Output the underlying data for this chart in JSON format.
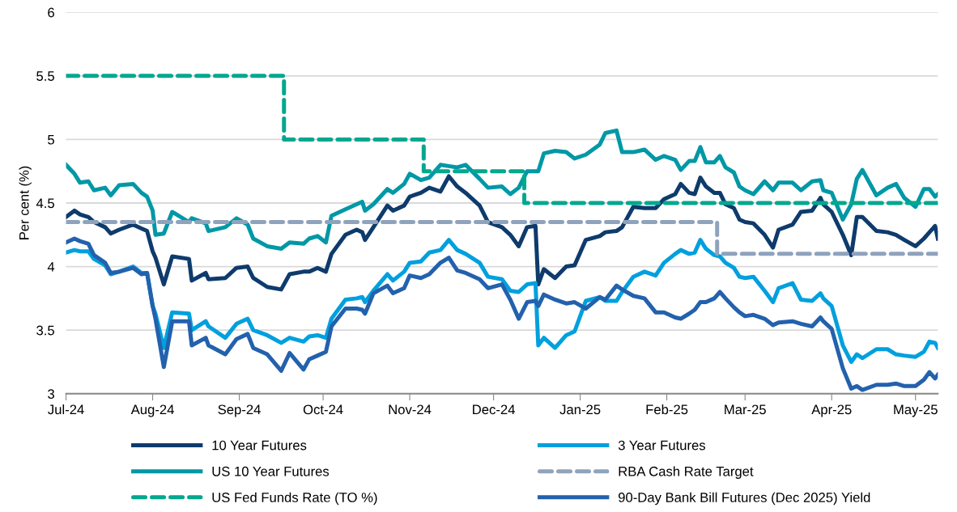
{
  "chart_data": {
    "type": "line",
    "ylabel": "Per cent (%)",
    "x": [
      "2024-07-01",
      "2024-07-04",
      "2024-07-06",
      "2024-07-09",
      "2024-07-11",
      "2024-07-15",
      "2024-07-17",
      "2024-07-20",
      "2024-07-25",
      "2024-07-28",
      "2024-07-30",
      "2024-08-01",
      "2024-08-02",
      "2024-08-05",
      "2024-08-08",
      "2024-08-14",
      "2024-08-15",
      "2024-08-20",
      "2024-08-21",
      "2024-08-27",
      "2024-08-31",
      "2024-09-04",
      "2024-09-06",
      "2024-09-11",
      "2024-09-16",
      "2024-09-19",
      "2024-09-24",
      "2024-09-26",
      "2024-09-29",
      "2024-10-02",
      "2024-10-04",
      "2024-10-09",
      "2024-10-13",
      "2024-10-15",
      "2024-10-16",
      "2024-10-19",
      "2024-10-24",
      "2024-10-26",
      "2024-10-30",
      "2024-11-01",
      "2024-11-05",
      "2024-11-08",
      "2024-11-12",
      "2024-11-15",
      "2024-11-18",
      "2024-11-21",
      "2024-11-26",
      "2024-11-29",
      "2024-12-04",
      "2024-12-07",
      "2024-12-10",
      "2024-12-13",
      "2024-12-16",
      "2024-12-17",
      "2024-12-19",
      "2024-12-23",
      "2024-12-27",
      "2024-12-30",
      "2025-01-03",
      "2025-01-08",
      "2025-01-10",
      "2025-01-14",
      "2025-01-16",
      "2025-01-20",
      "2025-01-24",
      "2025-01-28",
      "2025-01-31",
      "2025-02-04",
      "2025-02-06",
      "2025-02-09",
      "2025-02-11",
      "2025-02-13",
      "2025-02-15",
      "2025-02-18",
      "2025-02-20",
      "2025-02-22",
      "2025-02-25",
      "2025-02-27",
      "2025-03-01",
      "2025-03-04",
      "2025-03-08",
      "2025-03-11",
      "2025-03-13",
      "2025-03-18",
      "2025-03-21",
      "2025-03-25",
      "2025-03-28",
      "2025-03-29",
      "2025-04-01",
      "2025-04-05",
      "2025-04-08",
      "2025-04-10",
      "2025-04-12",
      "2025-04-17",
      "2025-04-21",
      "2025-04-24",
      "2025-04-27",
      "2025-05-01",
      "2025-05-04",
      "2025-05-06",
      "2025-05-08",
      "2025-05-09"
    ],
    "series": [
      {
        "name": "10 Year Futures",
        "color": "#0e3b6c",
        "values": [
          4.39,
          4.44,
          4.41,
          4.39,
          4.35,
          4.31,
          4.26,
          4.29,
          4.33,
          4.3,
          4.28,
          4.12,
          4.07,
          3.86,
          4.08,
          4.06,
          3.89,
          3.95,
          3.9,
          3.91,
          3.99,
          4.0,
          3.91,
          3.84,
          3.82,
          3.94,
          3.96,
          3.96,
          3.99,
          3.96,
          4.1,
          4.25,
          4.29,
          4.27,
          4.21,
          4.31,
          4.48,
          4.44,
          4.48,
          4.55,
          4.58,
          4.62,
          4.59,
          4.71,
          4.63,
          4.58,
          4.48,
          4.35,
          4.31,
          4.25,
          4.16,
          4.31,
          4.32,
          3.86,
          3.98,
          3.91,
          4.0,
          4.01,
          4.21,
          4.24,
          4.27,
          4.28,
          4.31,
          4.47,
          4.46,
          4.46,
          4.53,
          4.57,
          4.65,
          4.58,
          4.57,
          4.7,
          4.63,
          4.58,
          4.58,
          4.49,
          4.46,
          4.37,
          4.35,
          4.34,
          4.25,
          4.15,
          4.29,
          4.33,
          4.43,
          4.44,
          4.54,
          4.49,
          4.43,
          4.25,
          4.09,
          4.39,
          4.39,
          4.28,
          4.27,
          4.25,
          4.21,
          4.16,
          4.22,
          4.27,
          4.32,
          4.22
        ]
      },
      {
        "name": "US 10 Year Futures",
        "color": "#0098a6",
        "values": [
          4.8,
          4.73,
          4.66,
          4.67,
          4.6,
          4.62,
          4.56,
          4.64,
          4.65,
          4.58,
          4.55,
          4.44,
          4.25,
          4.26,
          4.43,
          4.35,
          4.38,
          4.34,
          4.28,
          4.31,
          4.38,
          4.33,
          4.22,
          4.16,
          4.14,
          4.19,
          4.18,
          4.22,
          4.24,
          4.19,
          4.4,
          4.45,
          4.49,
          4.51,
          4.44,
          4.49,
          4.61,
          4.58,
          4.65,
          4.73,
          4.68,
          4.7,
          4.8,
          4.79,
          4.78,
          4.8,
          4.69,
          4.62,
          4.63,
          4.57,
          4.62,
          4.75,
          4.75,
          4.75,
          4.89,
          4.91,
          4.9,
          4.85,
          4.88,
          4.96,
          5.05,
          5.07,
          4.9,
          4.9,
          4.92,
          4.84,
          4.87,
          4.84,
          4.76,
          4.83,
          4.83,
          4.94,
          4.82,
          4.82,
          4.87,
          4.78,
          4.74,
          4.63,
          4.6,
          4.57,
          4.67,
          4.6,
          4.66,
          4.66,
          4.6,
          4.67,
          4.68,
          4.6,
          4.58,
          4.37,
          4.49,
          4.69,
          4.76,
          4.56,
          4.62,
          4.65,
          4.54,
          4.47,
          4.61,
          4.61,
          4.55,
          4.57
        ]
      },
      {
        "name": "US Fed Funds Rate (TO %)",
        "type": "step",
        "line_style": "dashed",
        "color": "#00a88e",
        "x": [
          "2024-07-01",
          "2024-09-17",
          "2024-11-06",
          "2024-12-12",
          "2025-05-09"
        ],
        "values": [
          5.5,
          5.0,
          4.75,
          4.5,
          4.5
        ]
      },
      {
        "name": "3 Year Futures",
        "color": "#00a0de",
        "values": [
          4.11,
          4.13,
          4.12,
          4.12,
          4.06,
          4.01,
          3.94,
          3.96,
          4.0,
          3.95,
          3.95,
          3.69,
          3.63,
          3.36,
          3.64,
          3.63,
          3.5,
          3.57,
          3.53,
          3.44,
          3.55,
          3.59,
          3.5,
          3.46,
          3.4,
          3.44,
          3.41,
          3.45,
          3.46,
          3.44,
          3.59,
          3.74,
          3.75,
          3.76,
          3.72,
          3.81,
          3.94,
          3.89,
          3.96,
          4.03,
          4.04,
          4.11,
          4.13,
          4.21,
          4.13,
          4.1,
          4.03,
          3.92,
          3.9,
          3.81,
          3.8,
          3.86,
          3.87,
          3.38,
          3.44,
          3.36,
          3.46,
          3.49,
          3.73,
          3.76,
          3.73,
          3.73,
          3.8,
          3.92,
          3.96,
          3.93,
          4.03,
          4.1,
          4.13,
          4.1,
          4.11,
          4.21,
          4.14,
          4.09,
          4.08,
          4.03,
          3.99,
          3.92,
          3.91,
          3.92,
          3.81,
          3.72,
          3.83,
          3.87,
          3.74,
          3.73,
          3.79,
          3.75,
          3.69,
          3.38,
          3.25,
          3.31,
          3.28,
          3.35,
          3.35,
          3.31,
          3.3,
          3.29,
          3.33,
          3.41,
          3.4,
          3.36
        ]
      },
      {
        "name": "RBA Cash Rate Target",
        "type": "step",
        "line_style": "dashed",
        "color": "#8fa3bd",
        "x": [
          "2024-07-01",
          "2025-02-19",
          "2025-05-09"
        ],
        "values": [
          4.35,
          4.1,
          4.1
        ]
      },
      {
        "name": "90-Day Bank Bill Futures (Dec 2025) Yield",
        "color": "#2361ad",
        "values": [
          4.19,
          4.22,
          4.2,
          4.18,
          4.09,
          4.03,
          3.95,
          3.96,
          3.99,
          3.94,
          3.95,
          3.69,
          3.59,
          3.21,
          3.57,
          3.57,
          3.38,
          3.44,
          3.38,
          3.31,
          3.43,
          3.47,
          3.36,
          3.31,
          3.18,
          3.32,
          3.19,
          3.27,
          3.3,
          3.33,
          3.53,
          3.67,
          3.67,
          3.66,
          3.63,
          3.79,
          3.85,
          3.79,
          3.83,
          3.93,
          3.91,
          3.94,
          4.03,
          4.07,
          3.97,
          3.95,
          3.9,
          3.83,
          3.86,
          3.74,
          3.59,
          3.72,
          3.73,
          3.69,
          3.78,
          3.74,
          3.71,
          3.72,
          3.67,
          3.76,
          3.74,
          3.85,
          3.82,
          3.77,
          3.75,
          3.64,
          3.64,
          3.6,
          3.59,
          3.63,
          3.66,
          3.72,
          3.72,
          3.75,
          3.8,
          3.75,
          3.68,
          3.64,
          3.61,
          3.62,
          3.59,
          3.54,
          3.56,
          3.57,
          3.55,
          3.53,
          3.6,
          3.57,
          3.51,
          3.2,
          3.04,
          3.06,
          3.03,
          3.07,
          3.07,
          3.08,
          3.06,
          3.06,
          3.11,
          3.17,
          3.12,
          3.15
        ]
      }
    ],
    "xlim": [
      "2024-07-01",
      "2025-05-09"
    ],
    "xticks": [
      {
        "value": "2024-07-01",
        "label": "Jul-24"
      },
      {
        "value": "2024-08-01",
        "label": "Aug-24"
      },
      {
        "value": "2024-09-01",
        "label": "Sep-24"
      },
      {
        "value": "2024-10-01",
        "label": "Oct-24"
      },
      {
        "value": "2024-11-01",
        "label": "Nov-24"
      },
      {
        "value": "2024-12-01",
        "label": "Dec-24"
      },
      {
        "value": "2025-01-01",
        "label": "Jan-25"
      },
      {
        "value": "2025-02-01",
        "label": "Feb-25"
      },
      {
        "value": "2025-03-01",
        "label": "Mar-25"
      },
      {
        "value": "2025-04-01",
        "label": "Apr-25"
      },
      {
        "value": "2025-05-01",
        "label": "May-25"
      }
    ],
    "ylim": [
      3,
      6
    ],
    "yticks": [
      3,
      3.5,
      4,
      4.5,
      5,
      5.5,
      6
    ],
    "grid": "y",
    "legend": "bottom",
    "line_style": "solid",
    "marker": "none"
  }
}
